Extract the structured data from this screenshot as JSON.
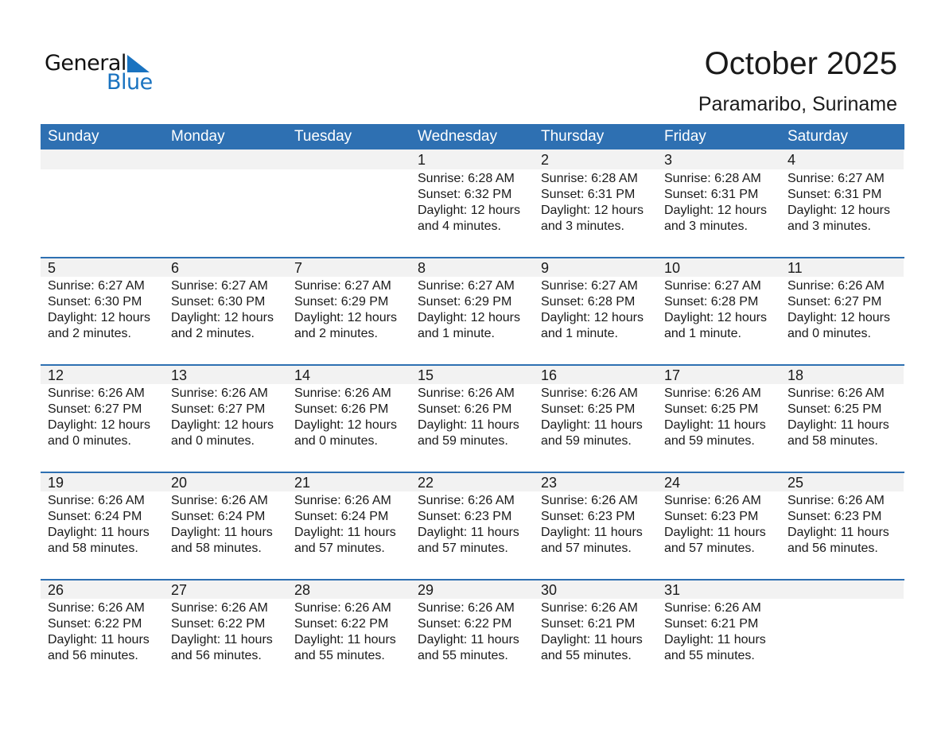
{
  "logo": {
    "text1": "General",
    "text2": "Blue",
    "color": "#1a73c0"
  },
  "title": "October 2025",
  "subtitle": "Paramaribo, Suriname",
  "colors": {
    "header": "#2e70b2",
    "date_band": "#f2f2f2"
  },
  "weekdays": [
    "Sunday",
    "Monday",
    "Tuesday",
    "Wednesday",
    "Thursday",
    "Friday",
    "Saturday"
  ],
  "weeks": [
    [
      null,
      null,
      null,
      {
        "day": "1",
        "sunrise": "Sunrise: 6:28 AM",
        "sunset": "Sunset: 6:32 PM",
        "daylight": "Daylight: 12 hours",
        "minutes": "and 4 minutes."
      },
      {
        "day": "2",
        "sunrise": "Sunrise: 6:28 AM",
        "sunset": "Sunset: 6:31 PM",
        "daylight": "Daylight: 12 hours",
        "minutes": "and 3 minutes."
      },
      {
        "day": "3",
        "sunrise": "Sunrise: 6:28 AM",
        "sunset": "Sunset: 6:31 PM",
        "daylight": "Daylight: 12 hours",
        "minutes": "and 3 minutes."
      },
      {
        "day": "4",
        "sunrise": "Sunrise: 6:27 AM",
        "sunset": "Sunset: 6:31 PM",
        "daylight": "Daylight: 12 hours",
        "minutes": "and 3 minutes."
      }
    ],
    [
      {
        "day": "5",
        "sunrise": "Sunrise: 6:27 AM",
        "sunset": "Sunset: 6:30 PM",
        "daylight": "Daylight: 12 hours",
        "minutes": "and 2 minutes."
      },
      {
        "day": "6",
        "sunrise": "Sunrise: 6:27 AM",
        "sunset": "Sunset: 6:30 PM",
        "daylight": "Daylight: 12 hours",
        "minutes": "and 2 minutes."
      },
      {
        "day": "7",
        "sunrise": "Sunrise: 6:27 AM",
        "sunset": "Sunset: 6:29 PM",
        "daylight": "Daylight: 12 hours",
        "minutes": "and 2 minutes."
      },
      {
        "day": "8",
        "sunrise": "Sunrise: 6:27 AM",
        "sunset": "Sunset: 6:29 PM",
        "daylight": "Daylight: 12 hours",
        "minutes": "and 1 minute."
      },
      {
        "day": "9",
        "sunrise": "Sunrise: 6:27 AM",
        "sunset": "Sunset: 6:28 PM",
        "daylight": "Daylight: 12 hours",
        "minutes": "and 1 minute."
      },
      {
        "day": "10",
        "sunrise": "Sunrise: 6:27 AM",
        "sunset": "Sunset: 6:28 PM",
        "daylight": "Daylight: 12 hours",
        "minutes": "and 1 minute."
      },
      {
        "day": "11",
        "sunrise": "Sunrise: 6:26 AM",
        "sunset": "Sunset: 6:27 PM",
        "daylight": "Daylight: 12 hours",
        "minutes": "and 0 minutes."
      }
    ],
    [
      {
        "day": "12",
        "sunrise": "Sunrise: 6:26 AM",
        "sunset": "Sunset: 6:27 PM",
        "daylight": "Daylight: 12 hours",
        "minutes": "and 0 minutes."
      },
      {
        "day": "13",
        "sunrise": "Sunrise: 6:26 AM",
        "sunset": "Sunset: 6:27 PM",
        "daylight": "Daylight: 12 hours",
        "minutes": "and 0 minutes."
      },
      {
        "day": "14",
        "sunrise": "Sunrise: 6:26 AM",
        "sunset": "Sunset: 6:26 PM",
        "daylight": "Daylight: 12 hours",
        "minutes": "and 0 minutes."
      },
      {
        "day": "15",
        "sunrise": "Sunrise: 6:26 AM",
        "sunset": "Sunset: 6:26 PM",
        "daylight": "Daylight: 11 hours",
        "minutes": "and 59 minutes."
      },
      {
        "day": "16",
        "sunrise": "Sunrise: 6:26 AM",
        "sunset": "Sunset: 6:25 PM",
        "daylight": "Daylight: 11 hours",
        "minutes": "and 59 minutes."
      },
      {
        "day": "17",
        "sunrise": "Sunrise: 6:26 AM",
        "sunset": "Sunset: 6:25 PM",
        "daylight": "Daylight: 11 hours",
        "minutes": "and 59 minutes."
      },
      {
        "day": "18",
        "sunrise": "Sunrise: 6:26 AM",
        "sunset": "Sunset: 6:25 PM",
        "daylight": "Daylight: 11 hours",
        "minutes": "and 58 minutes."
      }
    ],
    [
      {
        "day": "19",
        "sunrise": "Sunrise: 6:26 AM",
        "sunset": "Sunset: 6:24 PM",
        "daylight": "Daylight: 11 hours",
        "minutes": "and 58 minutes."
      },
      {
        "day": "20",
        "sunrise": "Sunrise: 6:26 AM",
        "sunset": "Sunset: 6:24 PM",
        "daylight": "Daylight: 11 hours",
        "minutes": "and 58 minutes."
      },
      {
        "day": "21",
        "sunrise": "Sunrise: 6:26 AM",
        "sunset": "Sunset: 6:24 PM",
        "daylight": "Daylight: 11 hours",
        "minutes": "and 57 minutes."
      },
      {
        "day": "22",
        "sunrise": "Sunrise: 6:26 AM",
        "sunset": "Sunset: 6:23 PM",
        "daylight": "Daylight: 11 hours",
        "minutes": "and 57 minutes."
      },
      {
        "day": "23",
        "sunrise": "Sunrise: 6:26 AM",
        "sunset": "Sunset: 6:23 PM",
        "daylight": "Daylight: 11 hours",
        "minutes": "and 57 minutes."
      },
      {
        "day": "24",
        "sunrise": "Sunrise: 6:26 AM",
        "sunset": "Sunset: 6:23 PM",
        "daylight": "Daylight: 11 hours",
        "minutes": "and 57 minutes."
      },
      {
        "day": "25",
        "sunrise": "Sunrise: 6:26 AM",
        "sunset": "Sunset: 6:23 PM",
        "daylight": "Daylight: 11 hours",
        "minutes": "and 56 minutes."
      }
    ],
    [
      {
        "day": "26",
        "sunrise": "Sunrise: 6:26 AM",
        "sunset": "Sunset: 6:22 PM",
        "daylight": "Daylight: 11 hours",
        "minutes": "and 56 minutes."
      },
      {
        "day": "27",
        "sunrise": "Sunrise: 6:26 AM",
        "sunset": "Sunset: 6:22 PM",
        "daylight": "Daylight: 11 hours",
        "minutes": "and 56 minutes."
      },
      {
        "day": "28",
        "sunrise": "Sunrise: 6:26 AM",
        "sunset": "Sunset: 6:22 PM",
        "daylight": "Daylight: 11 hours",
        "minutes": "and 55 minutes."
      },
      {
        "day": "29",
        "sunrise": "Sunrise: 6:26 AM",
        "sunset": "Sunset: 6:22 PM",
        "daylight": "Daylight: 11 hours",
        "minutes": "and 55 minutes."
      },
      {
        "day": "30",
        "sunrise": "Sunrise: 6:26 AM",
        "sunset": "Sunset: 6:21 PM",
        "daylight": "Daylight: 11 hours",
        "minutes": "and 55 minutes."
      },
      {
        "day": "31",
        "sunrise": "Sunrise: 6:26 AM",
        "sunset": "Sunset: 6:21 PM",
        "daylight": "Daylight: 11 hours",
        "minutes": "and 55 minutes."
      },
      null
    ]
  ]
}
